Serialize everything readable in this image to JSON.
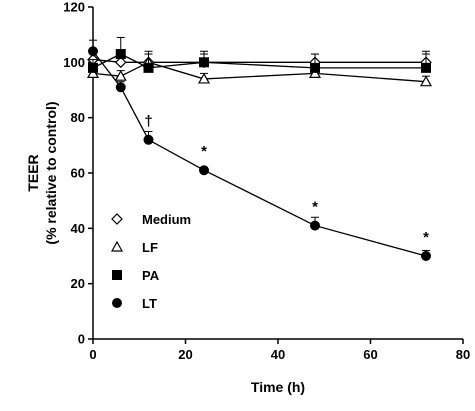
{
  "chart_data": {
    "type": "line",
    "xlabel": "Time (h)",
    "ylabel_line1": "TEER",
    "ylabel_line2": "(% relative to control)",
    "xlim": [
      0,
      80
    ],
    "ylim": [
      0,
      120
    ],
    "x_ticks": [
      0,
      20,
      40,
      60,
      80
    ],
    "y_ticks": [
      0,
      20,
      40,
      60,
      80,
      100,
      120
    ],
    "grid": false,
    "legend_position": "bottom-left",
    "series": [
      {
        "name": "Medium",
        "marker": "open-diamond",
        "x": [
          0,
          6,
          12,
          24,
          48,
          72
        ],
        "y": [
          101,
          100,
          100,
          100,
          100,
          100
        ],
        "err": [
          3,
          2,
          3,
          3,
          3,
          3
        ]
      },
      {
        "name": "LF",
        "marker": "open-triangle",
        "x": [
          0,
          6,
          12,
          24,
          48,
          72
        ],
        "y": [
          96,
          95,
          100,
          94,
          96,
          93
        ],
        "err": [
          3,
          2,
          3,
          2,
          2,
          2
        ]
      },
      {
        "name": "PA",
        "marker": "filled-square",
        "x": [
          0,
          6,
          12,
          24,
          48,
          72
        ],
        "y": [
          98,
          103,
          98,
          100,
          98,
          98
        ],
        "err": [
          3,
          6,
          6,
          4,
          5,
          6
        ]
      },
      {
        "name": "LT",
        "marker": "filled-circle",
        "x": [
          0,
          6,
          12,
          24,
          48,
          72
        ],
        "y": [
          104,
          91,
          72,
          61,
          41,
          30
        ],
        "err": [
          4,
          2,
          3,
          1,
          3,
          2
        ]
      }
    ],
    "annotations": [
      {
        "text": "†",
        "x": 12,
        "y": 72
      },
      {
        "text": "*",
        "x": 24,
        "y": 61
      },
      {
        "text": "*",
        "x": 48,
        "y": 41
      },
      {
        "text": "*",
        "x": 72,
        "y": 30
      }
    ]
  }
}
